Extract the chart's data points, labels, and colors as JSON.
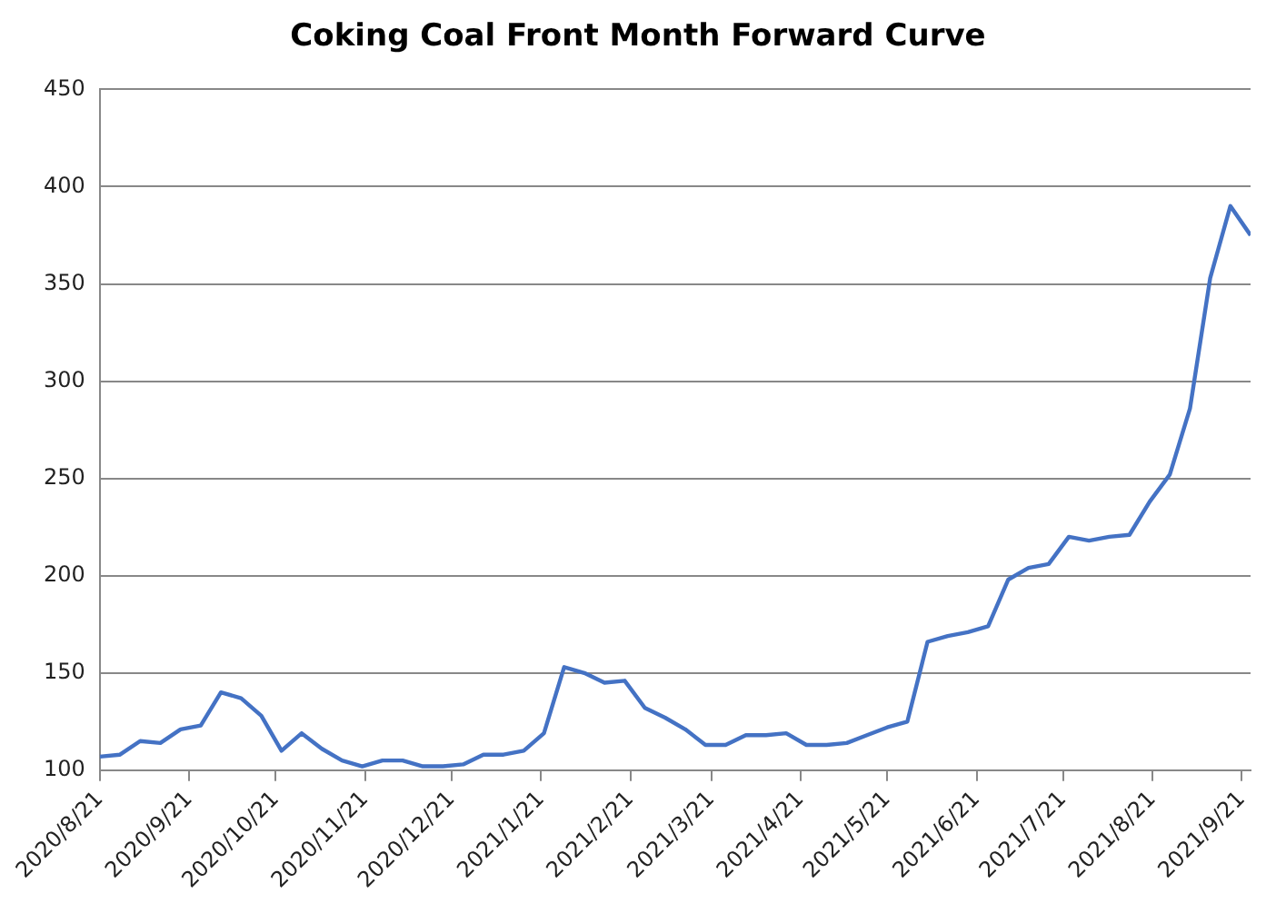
{
  "chart_data": {
    "type": "line",
    "title": "Coking Coal Front Month Forward Curve",
    "x": [
      "2020-08-21",
      "2020-08-28",
      "2020-09-04",
      "2020-09-11",
      "2020-09-18",
      "2020-09-25",
      "2020-10-02",
      "2020-10-09",
      "2020-10-16",
      "2020-10-23",
      "2020-10-30",
      "2020-11-06",
      "2020-11-13",
      "2020-11-20",
      "2020-11-27",
      "2020-12-04",
      "2020-12-11",
      "2020-12-18",
      "2020-12-25",
      "2021-01-01",
      "2021-01-08",
      "2021-01-15",
      "2021-01-22",
      "2021-01-29",
      "2021-02-05",
      "2021-02-12",
      "2021-02-19",
      "2021-02-26",
      "2021-03-05",
      "2021-03-12",
      "2021-03-19",
      "2021-03-26",
      "2021-04-02",
      "2021-04-09",
      "2021-04-16",
      "2021-04-23",
      "2021-04-30",
      "2021-05-07",
      "2021-05-14",
      "2021-05-21",
      "2021-05-28",
      "2021-06-04",
      "2021-06-11",
      "2021-06-18",
      "2021-06-25",
      "2021-07-02",
      "2021-07-09",
      "2021-07-16",
      "2021-07-23",
      "2021-07-30",
      "2021-08-06",
      "2021-08-13",
      "2021-08-20",
      "2021-08-27",
      "2021-09-03",
      "2021-09-10",
      "2021-09-17",
      "2021-09-24"
    ],
    "series": [
      {
        "color": "#4472c4",
        "values": [
          107,
          108,
          115,
          114,
          121,
          123,
          140,
          137,
          128,
          110,
          119,
          111,
          105,
          102,
          105,
          105,
          102,
          102,
          103,
          108,
          108,
          110,
          119,
          153,
          150,
          145,
          146,
          132,
          127,
          121,
          113,
          113,
          118,
          118,
          119,
          113,
          113,
          114,
          118,
          122,
          125,
          166,
          169,
          171,
          174,
          198,
          204,
          206,
          220,
          218,
          220,
          221,
          238,
          252,
          286,
          353,
          390,
          375
        ]
      }
    ],
    "xlim": [
      "2020-08-21",
      "2021-09-24"
    ],
    "xticks": [
      {
        "value": "2020-08-21",
        "label": "2020/8/21"
      },
      {
        "value": "2020-09-21",
        "label": "2020/9/21"
      },
      {
        "value": "2020-10-21",
        "label": "2020/10/21"
      },
      {
        "value": "2020-11-21",
        "label": "2020/11/21"
      },
      {
        "value": "2020-12-21",
        "label": "2020/12/21"
      },
      {
        "value": "2021-01-21",
        "label": "2021/1/21"
      },
      {
        "value": "2021-02-21",
        "label": "2021/2/21"
      },
      {
        "value": "2021-03-21",
        "label": "2021/3/21"
      },
      {
        "value": "2021-04-21",
        "label": "2021/4/21"
      },
      {
        "value": "2021-05-21",
        "label": "2021/5/21"
      },
      {
        "value": "2021-06-21",
        "label": "2021/6/21"
      },
      {
        "value": "2021-07-21",
        "label": "2021/7/21"
      },
      {
        "value": "2021-08-21",
        "label": "2021/8/21"
      },
      {
        "value": "2021-09-21",
        "label": "2021/9/21"
      }
    ],
    "ylim": [
      100,
      450
    ],
    "yticks": [
      100,
      150,
      200,
      250,
      300,
      350,
      400,
      450
    ],
    "grid": "y",
    "legend": false,
    "marker": "none",
    "line_style": "solid"
  }
}
